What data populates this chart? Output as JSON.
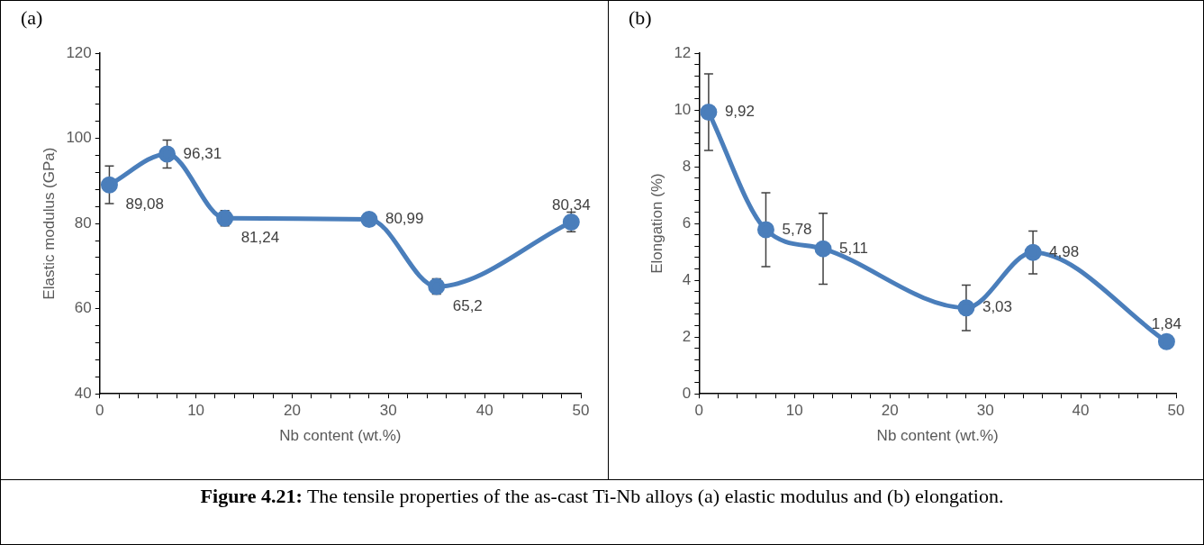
{
  "chart_data": [
    {
      "type": "line",
      "xlabel": "Nb content (wt.%)",
      "ylabel": "Elastic modulus (GPa)",
      "marker": "circle",
      "annotations": [
        "(a)",
        "Figure 4.21: The tensile properties of the as-cast Ti-Nb alloys (a) elastic modulus and (b) elongation."
      ],
      "xlim": [
        0,
        50
      ],
      "ylim": [
        40,
        120
      ],
      "xticks": [
        0,
        {
          "value": 2,
          "label": null
        },
        {
          "value": 4,
          "label": null
        },
        {
          "value": 6,
          "label": null
        },
        {
          "value": 8,
          "label": null
        },
        10,
        {
          "value": 12,
          "label": null
        },
        {
          "value": 14,
          "label": null
        },
        {
          "value": 16,
          "label": null
        },
        {
          "value": 18,
          "label": null
        },
        20,
        {
          "value": 22,
          "label": null
        },
        {
          "value": 24,
          "label": null
        },
        {
          "value": 26,
          "label": null
        },
        {
          "value": 28,
          "label": null
        },
        30,
        {
          "value": 32,
          "label": null
        },
        {
          "value": 34,
          "label": null
        },
        {
          "value": 36,
          "label": null
        },
        {
          "value": 38,
          "label": null
        },
        40,
        {
          "value": 42,
          "label": null
        },
        {
          "value": 44,
          "label": null
        },
        {
          "value": 46,
          "label": null
        },
        {
          "value": 48,
          "label": null
        },
        50
      ],
      "yticks": [
        40,
        {
          "value": 44,
          "label": null
        },
        {
          "value": 48,
          "label": null
        },
        {
          "value": 52,
          "label": null
        },
        {
          "value": 56,
          "label": null
        },
        60,
        {
          "value": 64,
          "label": null
        },
        {
          "value": 68,
          "label": null
        },
        {
          "value": 72,
          "label": null
        },
        {
          "value": 76,
          "label": null
        },
        80,
        {
          "value": 84,
          "label": null
        },
        {
          "value": 88,
          "label": null
        },
        {
          "value": 92,
          "label": null
        },
        {
          "value": 96,
          "label": null
        },
        100,
        {
          "value": 104,
          "label": null
        },
        {
          "value": 108,
          "label": null
        },
        {
          "value": 112,
          "label": null
        },
        {
          "value": 116,
          "label": null
        },
        120
      ],
      "x": [
        1,
        7,
        13,
        28,
        35,
        49
      ],
      "series": [
        {
          "color": "#4a7ebb",
          "values": [
            89.08,
            96.31,
            81.24,
            80.99,
            65.2,
            80.34
          ],
          "value_labels": [
            "89,08",
            "96,31",
            "81,24",
            "80,99",
            "65,2",
            "80,34"
          ],
          "errors": [
            4.4,
            3.3,
            1.8,
            null,
            1.8,
            2.3
          ]
        }
      ]
    },
    {
      "type": "line",
      "xlabel": "Nb content (wt.%)",
      "ylabel": "Elongation (%)",
      "marker": "circle",
      "annotations": [
        "(b)"
      ],
      "xlim": [
        0,
        50
      ],
      "ylim": [
        0,
        12
      ],
      "xticks": [
        0,
        {
          "value": 2,
          "label": null
        },
        {
          "value": 4,
          "label": null
        },
        {
          "value": 6,
          "label": null
        },
        {
          "value": 8,
          "label": null
        },
        10,
        {
          "value": 12,
          "label": null
        },
        {
          "value": 14,
          "label": null
        },
        {
          "value": 16,
          "label": null
        },
        {
          "value": 18,
          "label": null
        },
        20,
        {
          "value": 22,
          "label": null
        },
        {
          "value": 24,
          "label": null
        },
        {
          "value": 26,
          "label": null
        },
        {
          "value": 28,
          "label": null
        },
        30,
        {
          "value": 32,
          "label": null
        },
        {
          "value": 34,
          "label": null
        },
        {
          "value": 36,
          "label": null
        },
        {
          "value": 38,
          "label": null
        },
        40,
        {
          "value": 42,
          "label": null
        },
        {
          "value": 44,
          "label": null
        },
        {
          "value": 46,
          "label": null
        },
        {
          "value": 48,
          "label": null
        },
        50
      ],
      "yticks": [
        0,
        {
          "value": 0.4,
          "label": null
        },
        {
          "value": 0.8,
          "label": null
        },
        {
          "value": 1.2,
          "label": null
        },
        {
          "value": 1.6,
          "label": null
        },
        2,
        {
          "value": 2.4,
          "label": null
        },
        {
          "value": 2.8,
          "label": null
        },
        {
          "value": 3.2,
          "label": null
        },
        {
          "value": 3.6,
          "label": null
        },
        4,
        {
          "value": 4.4,
          "label": null
        },
        {
          "value": 4.8,
          "label": null
        },
        {
          "value": 5.2,
          "label": null
        },
        {
          "value": 5.6,
          "label": null
        },
        6,
        {
          "value": 6.4,
          "label": null
        },
        {
          "value": 6.8,
          "label": null
        },
        {
          "value": 7.2,
          "label": null
        },
        {
          "value": 7.6,
          "label": null
        },
        8,
        {
          "value": 8.4,
          "label": null
        },
        {
          "value": 8.8,
          "label": null
        },
        {
          "value": 9.2,
          "label": null
        },
        {
          "value": 9.6,
          "label": null
        },
        10,
        {
          "value": 10.4,
          "label": null
        },
        {
          "value": 10.8,
          "label": null
        },
        {
          "value": 11.2,
          "label": null
        },
        {
          "value": 11.6,
          "label": null
        },
        12
      ],
      "x": [
        1,
        7,
        13,
        28,
        35,
        49
      ],
      "series": [
        {
          "color": "#4a7ebb",
          "values": [
            9.92,
            5.78,
            5.11,
            3.03,
            4.98,
            1.84
          ],
          "value_labels": [
            "9,92",
            "5,78",
            "5,11",
            "3,03",
            "4,98",
            "1,84"
          ],
          "errors": [
            1.35,
            1.3,
            1.25,
            0.8,
            0.75,
            null
          ]
        }
      ]
    }
  ]
}
